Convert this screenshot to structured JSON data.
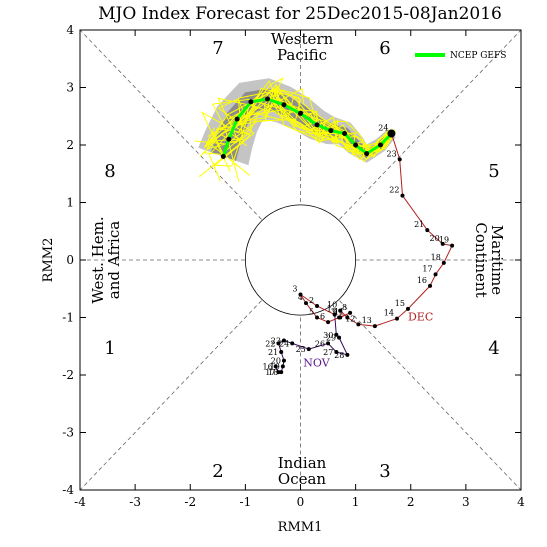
{
  "chart_data": {
    "type": "scatter",
    "title": "MJO Index Forecast for 25Dec2015-08Jan2016",
    "xlabel": "RMM1",
    "ylabel": "RMM2",
    "xlim": [
      -4,
      4
    ],
    "ylim": [
      -4,
      4
    ],
    "xticks": [
      "-4",
      "-3",
      "-2",
      "-1",
      "0",
      "1",
      "2",
      "3",
      "4"
    ],
    "yticks": [
      "-4",
      "-3",
      "-2",
      "-1",
      "0",
      "1",
      "2",
      "3",
      "4"
    ],
    "phases": [
      "1",
      "2",
      "3",
      "4",
      "5",
      "6",
      "7",
      "8"
    ],
    "regions": {
      "western_pacific": [
        "Western",
        "Pacific"
      ],
      "indian_ocean": [
        "Indian",
        "Ocean"
      ],
      "maritime_continent": [
        "Maritime",
        "Continent"
      ],
      "west_hem_africa": [
        "West. Hem.",
        "and Africa"
      ]
    },
    "legend": {
      "label": "NCEP GEFS",
      "color": "#00ff00",
      "position": "top-right"
    },
    "observed": {
      "color": "#b22222",
      "months": [
        {
          "label": "NOV",
          "color": "#5a1a8a",
          "x": 0.05,
          "y": -1.85
        },
        {
          "label": "DEC",
          "color": "#b22222",
          "x": 1.95,
          "y": -1.05
        }
      ],
      "nov_color": "#3a0a5a",
      "nov_points": [
        {
          "day": "16",
          "x": -0.45,
          "y": -1.85
        },
        {
          "day": "17",
          "x": -0.4,
          "y": -1.95
        },
        {
          "day": "18",
          "x": -0.35,
          "y": -1.95
        },
        {
          "day": "19",
          "x": -0.32,
          "y": -1.85
        },
        {
          "day": "20",
          "x": -0.3,
          "y": -1.75
        },
        {
          "day": "21",
          "x": -0.35,
          "y": -1.6
        },
        {
          "day": "22",
          "x": -0.4,
          "y": -1.45
        },
        {
          "day": "23",
          "x": -0.3,
          "y": -1.4
        },
        {
          "day": "24",
          "x": -0.15,
          "y": -1.45
        },
        {
          "day": "25",
          "x": 0.15,
          "y": -1.55
        },
        {
          "day": "26",
          "x": 0.5,
          "y": -1.45
        },
        {
          "day": "27",
          "x": 0.65,
          "y": -1.6
        },
        {
          "day": "28",
          "x": 0.85,
          "y": -1.65
        },
        {
          "day": "29",
          "x": 0.7,
          "y": -1.35
        },
        {
          "day": "30",
          "x": 0.65,
          "y": -1.3
        }
      ],
      "dec_points": [
        {
          "day": "1",
          "x": 0.62,
          "y": -0.95
        },
        {
          "day": "2",
          "x": 0.3,
          "y": -0.8
        },
        {
          "day": "3",
          "x": 0.0,
          "y": -0.6
        },
        {
          "day": "4",
          "x": 0.1,
          "y": -0.75
        },
        {
          "day": "5",
          "x": 0.3,
          "y": -1.0
        },
        {
          "day": "6",
          "x": 0.5,
          "y": -1.08
        },
        {
          "day": "7",
          "x": 0.7,
          "y": -1.0
        },
        {
          "day": "8",
          "x": 0.9,
          "y": -0.92
        },
        {
          "day": "9",
          "x": 0.72,
          "y": -1.0
        },
        {
          "day": "10",
          "x": 0.72,
          "y": -0.88
        },
        {
          "day": "11",
          "x": 0.85,
          "y": -1.0
        },
        {
          "day": "12",
          "x": 1.05,
          "y": -1.12
        },
        {
          "day": "13",
          "x": 1.35,
          "y": -1.15
        },
        {
          "day": "14",
          "x": 1.75,
          "y": -1.02
        },
        {
          "day": "15",
          "x": 1.95,
          "y": -0.85
        },
        {
          "day": "16",
          "x": 2.35,
          "y": -0.45
        },
        {
          "day": "17",
          "x": 2.45,
          "y": -0.25
        },
        {
          "day": "18",
          "x": 2.6,
          "y": -0.05
        },
        {
          "day": "19",
          "x": 2.75,
          "y": 0.25
        },
        {
          "day": "20",
          "x": 2.58,
          "y": 0.28
        },
        {
          "day": "21",
          "x": 2.3,
          "y": 0.52
        },
        {
          "day": "22",
          "x": 1.85,
          "y": 1.12
        },
        {
          "day": "23",
          "x": 1.8,
          "y": 1.75
        },
        {
          "day": "24",
          "x": 1.65,
          "y": 2.2
        }
      ]
    },
    "forecast_mean": {
      "name": "NCEP GEFS",
      "color": "#00ff00",
      "x": [
        1.65,
        1.45,
        1.2,
        1.0,
        0.8,
        0.55,
        0.3,
        0.0,
        -0.3,
        -0.6,
        -0.9,
        -1.15,
        -1.3,
        -1.4
      ],
      "y": [
        2.2,
        2.0,
        1.85,
        2.0,
        2.2,
        2.25,
        2.35,
        2.55,
        2.7,
        2.8,
        2.75,
        2.45,
        2.1,
        1.8
      ]
    }
  }
}
